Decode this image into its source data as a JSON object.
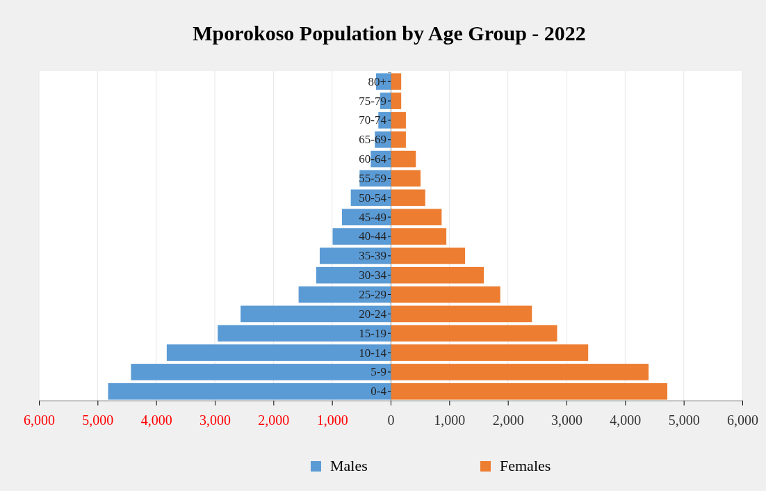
{
  "chart_data": {
    "type": "bar",
    "title": "Mporokoso Population by Age Group - 2022",
    "orientation": "horizontal",
    "stacked": true,
    "categories": [
      "80+",
      "75-79",
      "70-74",
      "65-69",
      "60-64",
      "55-59",
      "50-54",
      "45-49",
      "40-44",
      "35-39",
      "30-34",
      "25-29",
      "20-24",
      "15-19",
      "10-14",
      "5-9",
      "0-4"
    ],
    "series": [
      {
        "name": "Males",
        "color": "#5b9bd5",
        "values": [
          -250,
          -180,
          -210,
          -270,
          -340,
          -530,
          -680,
          -830,
          -990,
          -1210,
          -1270,
          -1570,
          -2560,
          -2950,
          -3820,
          -4430,
          -4820
        ]
      },
      {
        "name": "Females",
        "color": "#ed7d31",
        "values": [
          180,
          180,
          260,
          260,
          430,
          510,
          590,
          870,
          950,
          1270,
          1590,
          1870,
          2410,
          2840,
          3370,
          4400,
          4720
        ]
      }
    ],
    "xlim": [
      -6000,
      6000
    ],
    "xticks": [
      {
        "value": -6000,
        "label": "6,000"
      },
      {
        "value": -5000,
        "label": "5,000"
      },
      {
        "value": -4000,
        "label": "4,000"
      },
      {
        "value": -3000,
        "label": "3,000"
      },
      {
        "value": -2000,
        "label": "2,000"
      },
      {
        "value": -1000,
        "label": "1,000"
      },
      0,
      {
        "value": 1000,
        "label": "1,000"
      },
      {
        "value": 2000,
        "label": "2,000"
      },
      {
        "value": 3000,
        "label": "3,000"
      },
      {
        "value": 4000,
        "label": "4,000"
      },
      {
        "value": 5000,
        "label": "5,000"
      },
      {
        "value": 6000,
        "label": "6,000"
      }
    ],
    "grid": "x",
    "legend": "bottom"
  }
}
